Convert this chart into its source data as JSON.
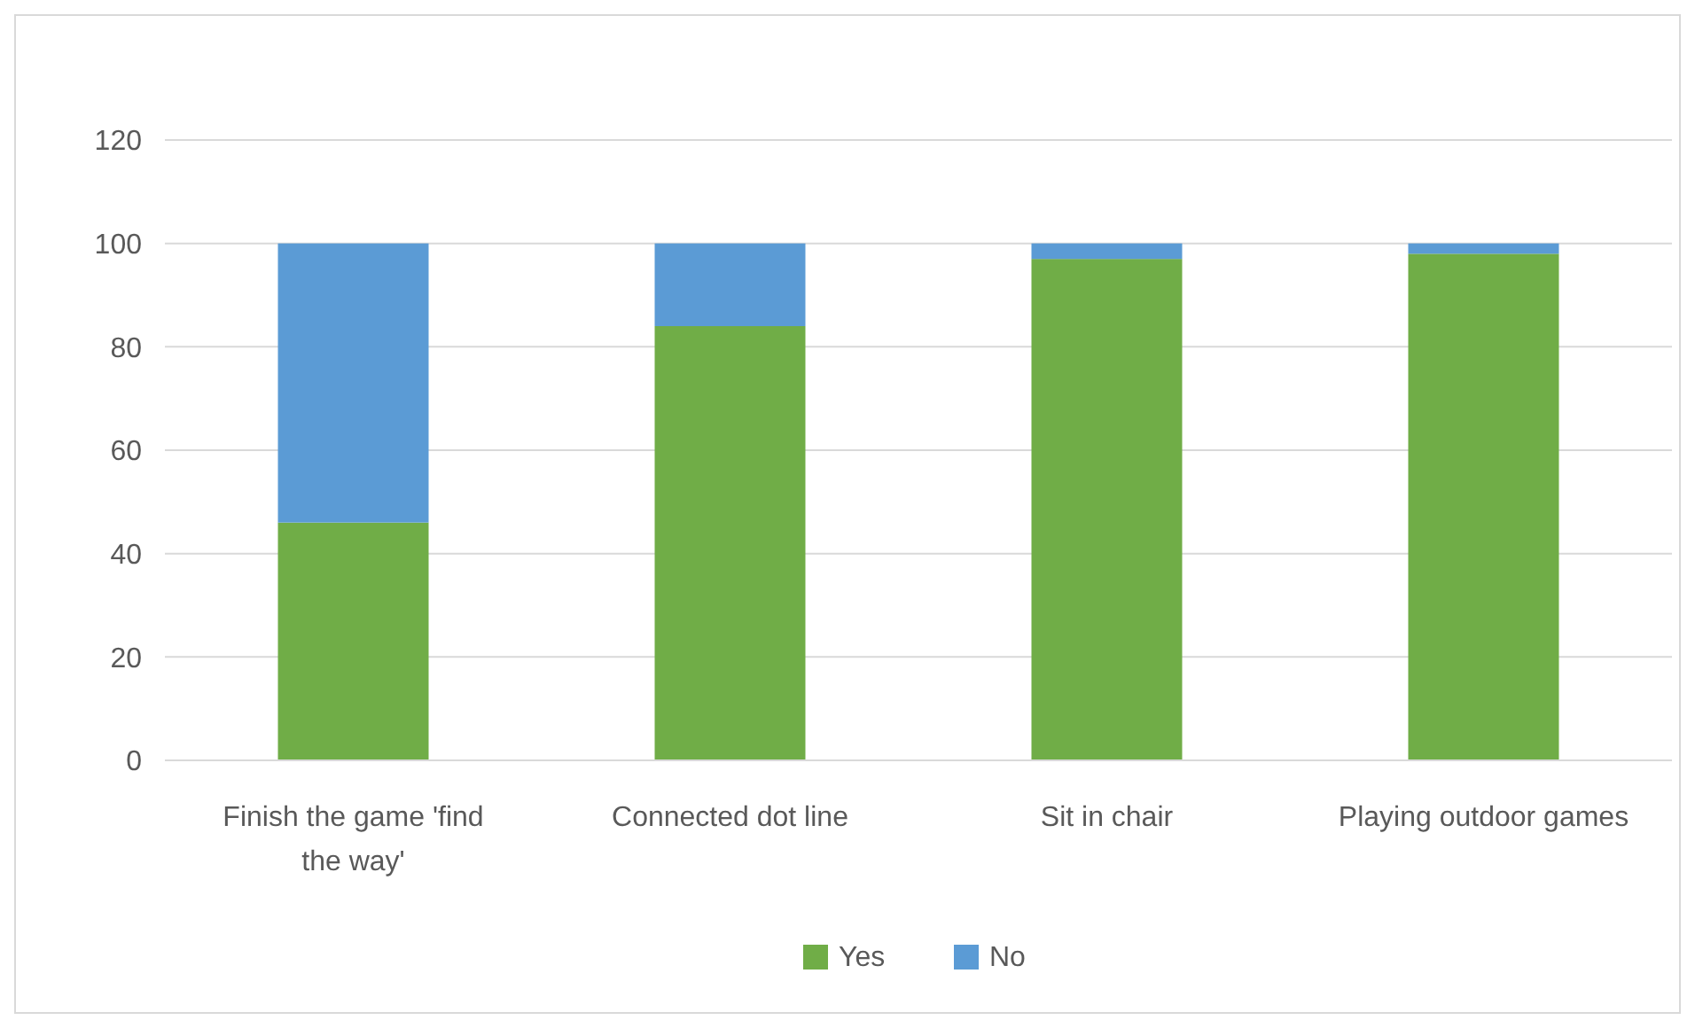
{
  "chart_data": {
    "type": "bar",
    "stacked": true,
    "categories": [
      "Finish the game 'find the way'",
      "Connected dot line",
      "Sit in chair",
      "Playing outdoor games"
    ],
    "series": [
      {
        "name": "Yes",
        "color": "#70ad47",
        "values": [
          46,
          84,
          97,
          98
        ]
      },
      {
        "name": "No",
        "color": "#5b9bd5",
        "values": [
          54,
          16,
          3,
          2
        ]
      }
    ],
    "ylim": [
      0,
      120
    ],
    "yticks": [
      0,
      20,
      40,
      60,
      80,
      100,
      120
    ],
    "grid": "y",
    "legend": "bottom"
  }
}
